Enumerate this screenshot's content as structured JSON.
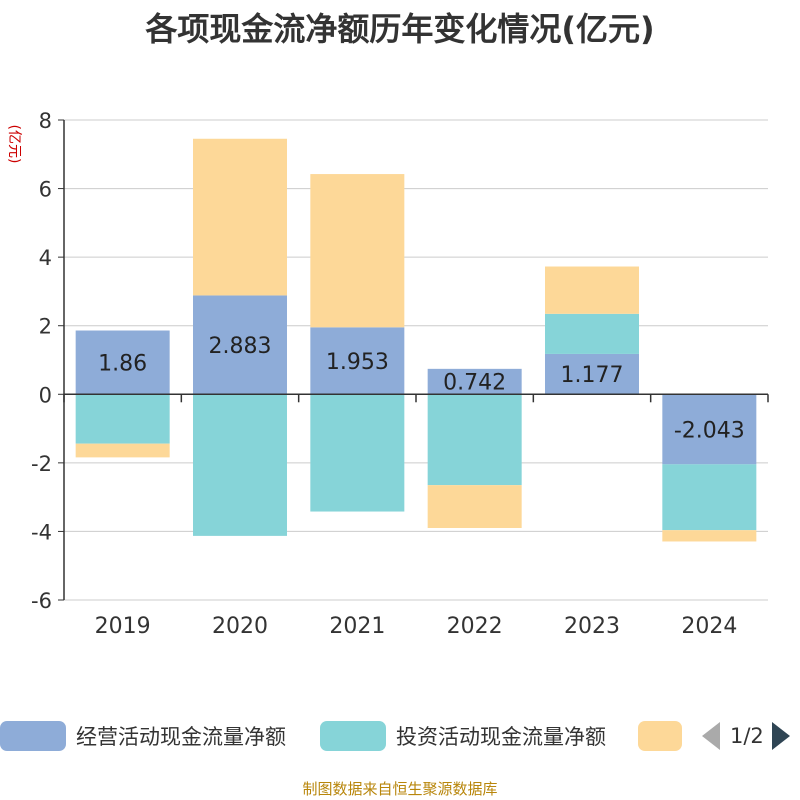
{
  "chart_data": {
    "type": "bar",
    "stacked": true,
    "title": "各项现金流净额历年变化情况(亿元)",
    "ylabel": "(亿元)",
    "xlabel": "",
    "ylim": [
      -6,
      8
    ],
    "yticks": [
      -6,
      -4,
      -2,
      0,
      2,
      4,
      6,
      8
    ],
    "ytick_labels": [
      "-6",
      "-4",
      "-2",
      "0",
      "2",
      "4",
      "6",
      "8"
    ],
    "grid": true,
    "categories": [
      "2019",
      "2020",
      "2021",
      "2022",
      "2023",
      "2024"
    ],
    "series": [
      {
        "name": "经营活动现金流量净额",
        "color": "#8eacd8",
        "values": [
          1.86,
          2.883,
          1.953,
          0.742,
          1.177,
          -2.043
        ],
        "labels": [
          "1.86",
          "2.883",
          "1.953",
          "0.742",
          "1.177",
          "-2.043"
        ]
      },
      {
        "name": "投资活动现金流量净额",
        "color": "#86d4d8",
        "values": [
          -1.44,
          -4.13,
          -3.42,
          -2.65,
          1.17,
          -1.92
        ]
      },
      {
        "name": "",
        "color": "#fdd898",
        "values": [
          -0.4,
          4.57,
          4.47,
          -1.25,
          1.38,
          -0.33
        ]
      }
    ]
  },
  "legend": {
    "items": [
      {
        "label": "经营活动现金流量净额"
      },
      {
        "label": "投资活动现金流量净额"
      },
      {
        "label": ""
      }
    ],
    "page": "1/2"
  },
  "source": "制图数据来自恒生聚源数据库"
}
